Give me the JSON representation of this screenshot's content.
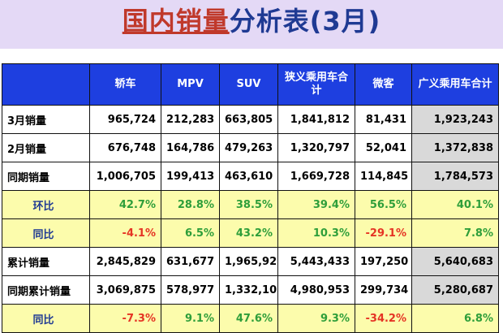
{
  "title": {
    "part1": "国内销量",
    "part2": "分析表(3月)"
  },
  "columns": [
    "轿车",
    "MPV",
    "SUV",
    "狭义乘用车合计",
    "微客",
    "广义乘用车合计"
  ],
  "rows": [
    {
      "label": "3月销量",
      "type": "num",
      "values": [
        "965,724",
        "212,283",
        "663,805",
        "1,841,812",
        "81,431",
        "1,923,243"
      ]
    },
    {
      "label": "2月销量",
      "type": "num",
      "values": [
        "676,748",
        "164,786",
        "479,263",
        "1,320,797",
        "52,041",
        "1,372,838"
      ]
    },
    {
      "label": "同期销量",
      "type": "num",
      "values": [
        "1,006,705",
        "199,413",
        "463,610",
        "1,669,728",
        "114,845",
        "1,784,573"
      ]
    },
    {
      "label": "环比",
      "type": "pct",
      "values": [
        "42.7%",
        "28.8%",
        "38.5%",
        "39.4%",
        "56.5%",
        "40.1%"
      ]
    },
    {
      "label": "同比",
      "type": "pct",
      "values": [
        "-4.1%",
        "6.5%",
        "43.2%",
        "10.3%",
        "-29.1%",
        "7.8%"
      ]
    },
    {
      "label": "累计销量",
      "type": "num",
      "values": [
        "2,845,829",
        "631,677",
        "1,965,927",
        "5,443,433",
        "197,250",
        "5,640,683"
      ]
    },
    {
      "label": "同期累计销量",
      "type": "num",
      "values": [
        "3,069,875",
        "578,977",
        "1,332,101",
        "4,980,953",
        "299,734",
        "5,280,687"
      ]
    },
    {
      "label": "同比",
      "type": "pct",
      "values": [
        "-7.3%",
        "9.1%",
        "47.6%",
        "9.3%",
        "-34.2%",
        "6.8%"
      ]
    }
  ]
}
